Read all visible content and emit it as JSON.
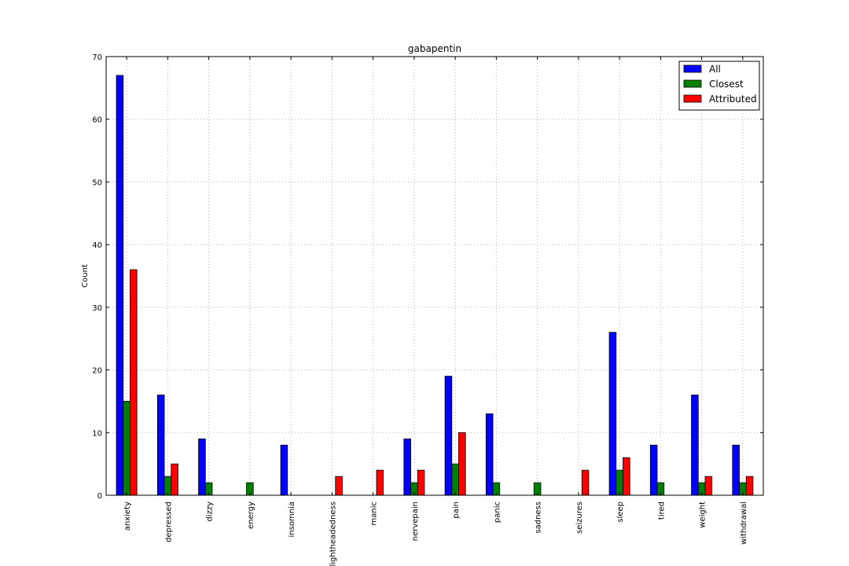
{
  "chart_data": {
    "type": "bar",
    "title": "gabapentin",
    "xlabel": "",
    "ylabel": "Count",
    "ylim": [
      0,
      70
    ],
    "yticks": [
      0,
      10,
      20,
      30,
      40,
      50,
      60,
      70
    ],
    "grid": true,
    "legend_position": "top-right",
    "categories": [
      "anxiety",
      "depressed",
      "dizzy",
      "energy",
      "insomnia",
      "lightheadedness",
      "manic",
      "nervepain",
      "pain",
      "panic",
      "sadness",
      "seizures",
      "sleep",
      "tired",
      "weight",
      "withdrawal"
    ],
    "series": [
      {
        "name": "All",
        "color": "#0000ff",
        "values": [
          67,
          16,
          9,
          0,
          8,
          0,
          0,
          9,
          19,
          13,
          0,
          0,
          26,
          8,
          16,
          8
        ]
      },
      {
        "name": "Closest",
        "color": "#008000",
        "values": [
          15,
          3,
          2,
          2,
          0,
          0,
          0,
          2,
          5,
          2,
          2,
          0,
          4,
          2,
          2,
          2
        ]
      },
      {
        "name": "Attributed",
        "color": "#ff0000",
        "values": [
          36,
          5,
          0,
          0,
          0,
          3,
          4,
          4,
          10,
          0,
          0,
          4,
          6,
          0,
          3,
          3
        ]
      }
    ]
  }
}
